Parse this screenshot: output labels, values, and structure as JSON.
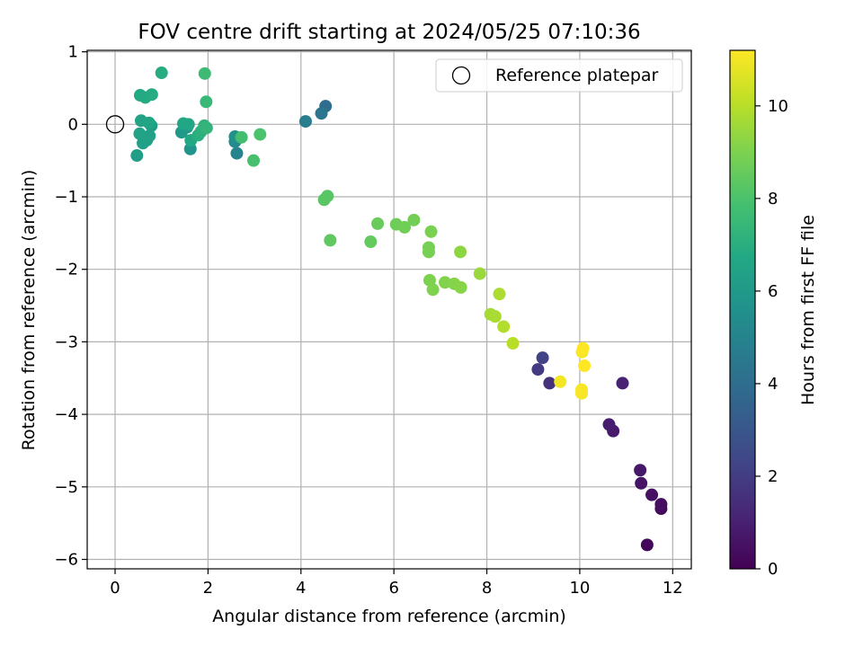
{
  "chart_data": {
    "type": "scatter",
    "title": "FOV centre drift starting at 2024/05/25 07:10:36",
    "xlabel": "Angular distance from reference (arcmin)",
    "ylabel": "Rotation from reference (arcmin)",
    "xlim": [
      -0.6,
      12.4
    ],
    "ylim": [
      -6.13,
      1.02
    ],
    "xticks": [
      0,
      2,
      4,
      6,
      8,
      10,
      12
    ],
    "yticks": [
      1,
      0,
      -1,
      -2,
      -3,
      -4,
      -5,
      -6
    ],
    "grid": true,
    "legend": {
      "position": "top-right",
      "label": "Reference platepar"
    },
    "reference_point": {
      "x": 0,
      "y": 0
    },
    "colorbar": {
      "label": "Hours from first FF file",
      "range": [
        0,
        11.2
      ],
      "ticks": [
        0,
        2,
        4,
        6,
        8,
        10
      ],
      "colormap": "viridis"
    },
    "points": [
      {
        "x": 11.45,
        "y": -5.8,
        "c": 0.2
      },
      {
        "x": 11.75,
        "y": -5.3,
        "c": 0.3
      },
      {
        "x": 11.75,
        "y": -5.24,
        "c": 0.4
      },
      {
        "x": 11.55,
        "y": -5.11,
        "c": 0.5
      },
      {
        "x": 11.32,
        "y": -4.95,
        "c": 0.6
      },
      {
        "x": 11.3,
        "y": -4.77,
        "c": 0.7
      },
      {
        "x": 10.72,
        "y": -4.23,
        "c": 0.8
      },
      {
        "x": 10.63,
        "y": -4.14,
        "c": 0.9
      },
      {
        "x": 10.92,
        "y": -3.57,
        "c": 1.1
      },
      {
        "x": 9.35,
        "y": -3.57,
        "c": 1.6
      },
      {
        "x": 9.1,
        "y": -3.38,
        "c": 1.9
      },
      {
        "x": 9.2,
        "y": -3.22,
        "c": 2.2
      },
      {
        "x": 4.53,
        "y": 0.25,
        "c": 4.0
      },
      {
        "x": 4.44,
        "y": 0.15,
        "c": 4.4
      },
      {
        "x": 4.1,
        "y": 0.04,
        "c": 4.7
      },
      {
        "x": 2.62,
        "y": -0.4,
        "c": 5.0
      },
      {
        "x": 2.58,
        "y": -0.24,
        "c": 5.3
      },
      {
        "x": 2.58,
        "y": -0.17,
        "c": 5.6
      },
      {
        "x": 1.62,
        "y": -0.34,
        "c": 5.8
      },
      {
        "x": 1.55,
        "y": -0.04,
        "c": 5.9
      },
      {
        "x": 1.43,
        "y": -0.11,
        "c": 6.0
      },
      {
        "x": 0.78,
        "y": -0.02,
        "c": 6.1
      },
      {
        "x": 0.47,
        "y": -0.43,
        "c": 6.2
      },
      {
        "x": 0.6,
        "y": -0.26,
        "c": 6.3
      },
      {
        "x": 0.68,
        "y": -0.22,
        "c": 6.35
      },
      {
        "x": 0.74,
        "y": -0.16,
        "c": 6.4
      },
      {
        "x": 0.53,
        "y": -0.13,
        "c": 6.45
      },
      {
        "x": 0.56,
        "y": 0.05,
        "c": 6.5
      },
      {
        "x": 0.73,
        "y": 0.02,
        "c": 6.55
      },
      {
        "x": 1.58,
        "y": 0.0,
        "c": 6.6
      },
      {
        "x": 1.47,
        "y": 0.01,
        "c": 6.65
      },
      {
        "x": 1.63,
        "y": -0.22,
        "c": 6.7
      },
      {
        "x": 0.54,
        "y": 0.4,
        "c": 6.75
      },
      {
        "x": 0.65,
        "y": 0.37,
        "c": 6.8
      },
      {
        "x": 0.79,
        "y": 0.41,
        "c": 6.85
      },
      {
        "x": 1.0,
        "y": 0.71,
        "c": 6.9
      },
      {
        "x": 1.79,
        "y": -0.15,
        "c": 7.0
      },
      {
        "x": 1.85,
        "y": -0.1,
        "c": 7.1
      },
      {
        "x": 1.92,
        "y": -0.02,
        "c": 7.2
      },
      {
        "x": 1.97,
        "y": -0.05,
        "c": 7.3
      },
      {
        "x": 1.96,
        "y": 0.31,
        "c": 7.5
      },
      {
        "x": 1.93,
        "y": 0.7,
        "c": 7.6
      },
      {
        "x": 2.72,
        "y": -0.18,
        "c": 7.8
      },
      {
        "x": 2.98,
        "y": -0.5,
        "c": 7.9
      },
      {
        "x": 3.12,
        "y": -0.14,
        "c": 8.0
      },
      {
        "x": 4.57,
        "y": -0.99,
        "c": 8.2
      },
      {
        "x": 4.5,
        "y": -1.04,
        "c": 8.3
      },
      {
        "x": 4.63,
        "y": -1.6,
        "c": 8.4
      },
      {
        "x": 5.5,
        "y": -1.62,
        "c": 8.5
      },
      {
        "x": 5.65,
        "y": -1.37,
        "c": 8.6
      },
      {
        "x": 6.05,
        "y": -1.38,
        "c": 8.7
      },
      {
        "x": 6.23,
        "y": -1.42,
        "c": 8.75
      },
      {
        "x": 6.43,
        "y": -1.32,
        "c": 8.8
      },
      {
        "x": 6.75,
        "y": -1.7,
        "c": 8.85
      },
      {
        "x": 6.75,
        "y": -1.76,
        "c": 8.9
      },
      {
        "x": 6.8,
        "y": -1.48,
        "c": 8.95
      },
      {
        "x": 6.77,
        "y": -2.15,
        "c": 9.0
      },
      {
        "x": 6.84,
        "y": -2.28,
        "c": 9.05
      },
      {
        "x": 7.1,
        "y": -2.18,
        "c": 9.1
      },
      {
        "x": 7.3,
        "y": -2.2,
        "c": 9.15
      },
      {
        "x": 7.44,
        "y": -2.25,
        "c": 9.2
      },
      {
        "x": 7.43,
        "y": -1.76,
        "c": 9.3
      },
      {
        "x": 7.85,
        "y": -2.06,
        "c": 9.5
      },
      {
        "x": 8.08,
        "y": -2.62,
        "c": 9.7
      },
      {
        "x": 8.18,
        "y": -2.65,
        "c": 9.75
      },
      {
        "x": 8.27,
        "y": -2.34,
        "c": 9.8
      },
      {
        "x": 8.36,
        "y": -2.79,
        "c": 9.9
      },
      {
        "x": 8.56,
        "y": -3.02,
        "c": 10.0
      },
      {
        "x": 9.58,
        "y": -3.55,
        "c": 11.0
      },
      {
        "x": 10.04,
        "y": -3.66,
        "c": 11.1
      },
      {
        "x": 10.04,
        "y": -3.71,
        "c": 11.1
      },
      {
        "x": 10.05,
        "y": -3.14,
        "c": 11.1
      },
      {
        "x": 10.07,
        "y": -3.09,
        "c": 11.2
      },
      {
        "x": 10.1,
        "y": -3.33,
        "c": 11.2
      }
    ]
  }
}
